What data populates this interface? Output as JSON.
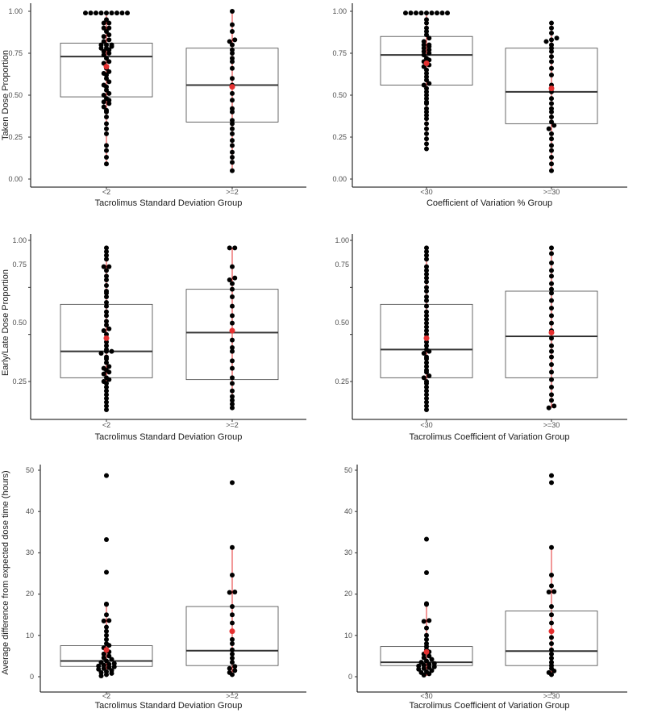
{
  "figure": {
    "title": ""
  },
  "chart_data": [
    {
      "type": "box-dotplot",
      "xlabel": "Tacrolimus Standard Deviation Group",
      "ylabel": "Taken Dose Proportion",
      "ylim": [
        0,
        1
      ],
      "yticks": [
        "0.00",
        "0.25",
        "0.50",
        "0.75",
        "1.00"
      ],
      "categories": [
        "<2",
        ">=2"
      ],
      "boxes": [
        {
          "q1": 0.49,
          "median": 0.73,
          "q3": 0.81,
          "min": 0.09,
          "max": 0.99,
          "mean": 0.67
        },
        {
          "q1": 0.34,
          "median": 0.56,
          "q3": 0.78,
          "min": 0.05,
          "max": 1.0,
          "mean": 0.55
        }
      ],
      "points": [
        [
          0.99,
          0.99,
          0.99,
          0.99,
          0.99,
          0.99,
          0.99,
          0.99,
          0.99,
          0.95,
          0.93,
          0.93,
          0.9,
          0.9,
          0.88,
          0.86,
          0.85,
          0.83,
          0.82,
          0.8,
          0.8,
          0.8,
          0.79,
          0.78,
          0.78,
          0.77,
          0.76,
          0.75,
          0.74,
          0.72,
          0.7,
          0.69,
          0.67,
          0.66,
          0.64,
          0.63,
          0.62,
          0.6,
          0.58,
          0.56,
          0.55,
          0.53,
          0.51,
          0.5,
          0.48,
          0.47,
          0.46,
          0.45,
          0.43,
          0.41,
          0.4,
          0.37,
          0.33,
          0.3,
          0.27,
          0.2,
          0.17,
          0.13,
          0.09
        ],
        [
          1.0,
          0.92,
          0.88,
          0.83,
          0.82,
          0.8,
          0.77,
          0.75,
          0.72,
          0.7,
          0.66,
          0.6,
          0.56,
          0.55,
          0.51,
          0.47,
          0.42,
          0.4,
          0.35,
          0.33,
          0.3,
          0.27,
          0.23,
          0.2,
          0.16,
          0.13,
          0.1,
          0.05
        ]
      ]
    },
    {
      "type": "box-dotplot",
      "xlabel": "Coefficient of Variation % Group",
      "ylabel": "",
      "ylim": [
        0,
        1
      ],
      "yticks": [
        "0.00",
        "0.25",
        "0.50",
        "0.75",
        "1.00"
      ],
      "categories": [
        "<30",
        ">=30"
      ],
      "boxes": [
        {
          "q1": 0.56,
          "median": 0.74,
          "q3": 0.85,
          "min": 0.18,
          "max": 0.99,
          "mean": 0.69
        },
        {
          "q1": 0.33,
          "median": 0.52,
          "q3": 0.78,
          "min": 0.05,
          "max": 0.93,
          "mean": 0.54
        }
      ],
      "points": [
        [
          0.99,
          0.99,
          0.99,
          0.99,
          0.99,
          0.99,
          0.99,
          0.99,
          0.99,
          0.95,
          0.93,
          0.9,
          0.88,
          0.86,
          0.84,
          0.82,
          0.8,
          0.8,
          0.79,
          0.78,
          0.77,
          0.76,
          0.75,
          0.74,
          0.72,
          0.71,
          0.7,
          0.68,
          0.67,
          0.65,
          0.63,
          0.61,
          0.59,
          0.57,
          0.56,
          0.54,
          0.52,
          0.5,
          0.48,
          0.46,
          0.45,
          0.42,
          0.4,
          0.38,
          0.36,
          0.33,
          0.3,
          0.27,
          0.24,
          0.21,
          0.18
        ],
        [
          0.93,
          0.9,
          0.87,
          0.84,
          0.83,
          0.82,
          0.8,
          0.78,
          0.76,
          0.73,
          0.7,
          0.66,
          0.62,
          0.56,
          0.54,
          0.52,
          0.48,
          0.45,
          0.42,
          0.4,
          0.37,
          0.34,
          0.32,
          0.3,
          0.27,
          0.24,
          0.2,
          0.17,
          0.13,
          0.09,
          0.05
        ]
      ]
    },
    {
      "type": "box-dotplot",
      "xlabel": "Tacrolimus Standard Deviation Group",
      "ylabel": "Early/Late Dose Proportion",
      "ylim": [
        0.1,
        1
      ],
      "yticks": [
        "0.25",
        "0.50",
        "0.75",
        "1.00"
      ],
      "yticks_at": [
        0.25,
        0.5,
        0.75,
        1.0
      ],
      "categories": [
        "<2",
        ">=2"
      ],
      "boxes": [
        {
          "q1": 0.27,
          "median": 0.41,
          "q3": 0.66,
          "min": 0.1,
          "max": 0.96,
          "mean": 0.48
        },
        {
          "q1": 0.26,
          "median": 0.51,
          "q3": 0.74,
          "min": 0.11,
          "max": 0.96,
          "mean": 0.52
        }
      ],
      "points": [
        [
          0.96,
          0.94,
          0.92,
          0.9,
          0.86,
          0.86,
          0.84,
          0.81,
          0.79,
          0.76,
          0.73,
          0.72,
          0.7,
          0.67,
          0.65,
          0.62,
          0.6,
          0.57,
          0.55,
          0.53,
          0.52,
          0.5,
          0.48,
          0.46,
          0.44,
          0.42,
          0.41,
          0.41,
          0.4,
          0.38,
          0.37,
          0.35,
          0.33,
          0.32,
          0.31,
          0.3,
          0.29,
          0.27,
          0.26,
          0.25,
          0.24,
          0.22,
          0.2,
          0.18,
          0.16,
          0.14,
          0.12,
          0.1
        ],
        [
          0.96,
          0.96,
          0.86,
          0.8,
          0.79,
          0.77,
          0.74,
          0.7,
          0.65,
          0.6,
          0.56,
          0.52,
          0.47,
          0.43,
          0.41,
          0.36,
          0.32,
          0.27,
          0.24,
          0.2,
          0.17,
          0.15,
          0.13,
          0.11
        ]
      ]
    },
    {
      "type": "box-dotplot",
      "xlabel": "Tacrolimus Coefficient of Variation Group",
      "ylabel": "",
      "ylim": [
        0.1,
        1
      ],
      "yticks": [
        "0.25",
        "0.50",
        "0.75",
        "1.00"
      ],
      "yticks_at": [
        0.25,
        0.5,
        0.75,
        1.0
      ],
      "categories": [
        "<30",
        ">=30"
      ],
      "boxes": [
        {
          "q1": 0.27,
          "median": 0.42,
          "q3": 0.66,
          "min": 0.1,
          "max": 0.96,
          "mean": 0.48
        },
        {
          "q1": 0.27,
          "median": 0.49,
          "q3": 0.73,
          "min": 0.11,
          "max": 0.96,
          "mean": 0.51
        }
      ],
      "points": [
        [
          0.96,
          0.94,
          0.92,
          0.9,
          0.86,
          0.84,
          0.82,
          0.8,
          0.78,
          0.75,
          0.73,
          0.7,
          0.68,
          0.65,
          0.62,
          0.6,
          0.58,
          0.56,
          0.54,
          0.52,
          0.5,
          0.48,
          0.46,
          0.44,
          0.42,
          0.41,
          0.4,
          0.38,
          0.37,
          0.35,
          0.33,
          0.31,
          0.3,
          0.28,
          0.27,
          0.25,
          0.24,
          0.22,
          0.2,
          0.18,
          0.16,
          0.14,
          0.12,
          0.1
        ],
        [
          0.96,
          0.93,
          0.88,
          0.84,
          0.81,
          0.77,
          0.74,
          0.72,
          0.68,
          0.64,
          0.6,
          0.56,
          0.52,
          0.48,
          0.44,
          0.41,
          0.38,
          0.34,
          0.3,
          0.26,
          0.22,
          0.18,
          0.15,
          0.12,
          0.11
        ]
      ]
    },
    {
      "type": "box-dotplot",
      "xlabel": "Tacrolimus Standard Deviation Group",
      "ylabel": "Average difference from expected dose time (hours)",
      "ylim": [
        -1,
        51
      ],
      "yticks": [
        "0",
        "10",
        "20",
        "30",
        "40",
        "50"
      ],
      "yticks_at": [
        0,
        10,
        20,
        30,
        40,
        50
      ],
      "categories": [
        "<2",
        ">=2"
      ],
      "boxes": [
        {
          "q1": 2.5,
          "median": 3.8,
          "q3": 7.5,
          "min": 0,
          "max": 17.5,
          "mean": 6.5
        },
        {
          "q1": 2.7,
          "median": 6.3,
          "q3": 17.0,
          "min": 0.3,
          "max": 31.3,
          "mean": 11.0
        }
      ],
      "points": [
        [
          48.7,
          33.2,
          25.3,
          17.6,
          17.5,
          15.0,
          13.6,
          13.5,
          12.0,
          11.0,
          10.0,
          9.0,
          8.0,
          7.6,
          7.0,
          6.5,
          6.0,
          5.5,
          5.0,
          4.6,
          4.2,
          3.8,
          3.5,
          3.2,
          3.0,
          2.8,
          2.6,
          2.4,
          2.2,
          2.0,
          1.8,
          1.5,
          1.2,
          1.0,
          0.8,
          0.5,
          0.2
        ],
        [
          47.0,
          31.3,
          24.6,
          20.5,
          20.4,
          17.0,
          15.0,
          13.0,
          11.0,
          9.0,
          8.0,
          6.5,
          5.5,
          4.5,
          3.5,
          2.5,
          2.0,
          1.5,
          1.0,
          0.5
        ]
      ]
    },
    {
      "type": "box-dotplot",
      "xlabel": "Tacrolimus Coefficient of Variation Group",
      "ylabel": "",
      "ylim": [
        -1,
        51
      ],
      "yticks": [
        "0",
        "10",
        "20",
        "30",
        "40",
        "50"
      ],
      "yticks_at": [
        0,
        10,
        20,
        30,
        40,
        50
      ],
      "categories": [
        "<30",
        ">=30"
      ],
      "boxes": [
        {
          "q1": 2.7,
          "median": 3.5,
          "q3": 7.3,
          "min": 0.2,
          "max": 17.6,
          "mean": 6.0
        },
        {
          "q1": 2.7,
          "median": 6.2,
          "q3": 15.9,
          "min": 0.1,
          "max": 31.0,
          "mean": 11.0
        }
      ],
      "points": [
        [
          33.3,
          25.2,
          17.7,
          17.5,
          13.6,
          13.4,
          11.8,
          10.0,
          9.0,
          8.0,
          7.3,
          6.5,
          6.0,
          5.5,
          5.0,
          4.6,
          4.2,
          3.8,
          3.5,
          3.2,
          3.0,
          2.8,
          2.6,
          2.4,
          2.2,
          2.0,
          1.8,
          1.5,
          1.2,
          1.0,
          0.7,
          0.4
        ],
        [
          48.7,
          47.0,
          31.3,
          24.6,
          22.0,
          20.6,
          20.5,
          17.0,
          15.0,
          13.0,
          11.0,
          9.5,
          8.0,
          6.5,
          5.5,
          4.5,
          3.5,
          2.7,
          2.0,
          1.4,
          1.0,
          0.5
        ]
      ]
    }
  ]
}
